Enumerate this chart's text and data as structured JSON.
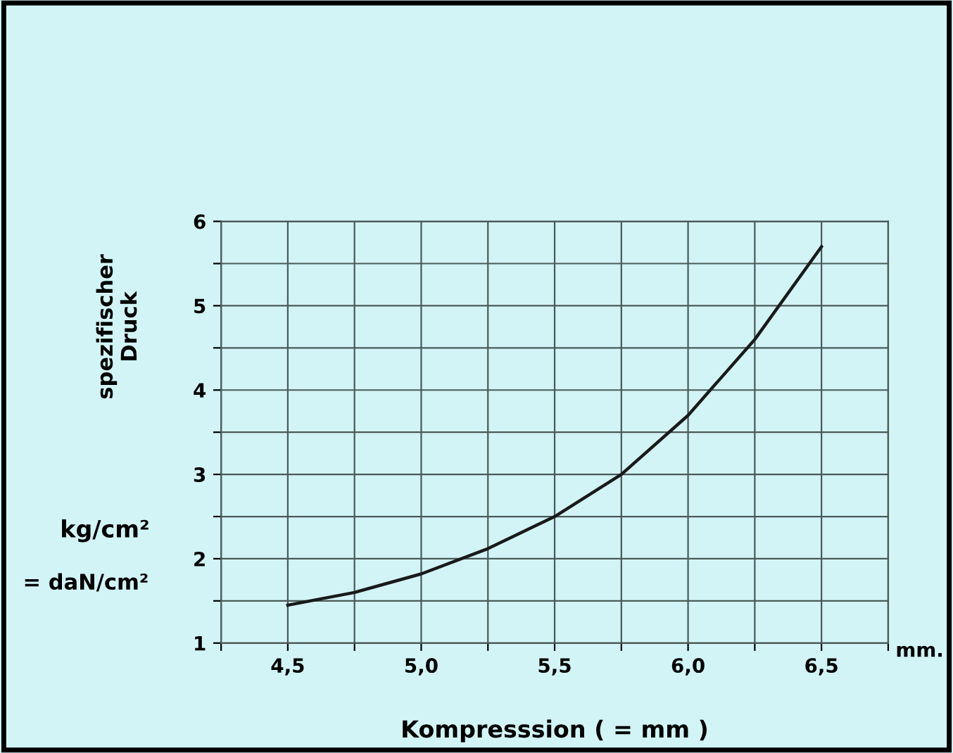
{
  "chart_data": {
    "type": "line",
    "ylabel": "spezifischer\nDruck",
    "xlabel": "Kompresssion ( = mm )",
    "annotations": [
      "kg/cm²",
      "= daN/cm²",
      "mm."
    ],
    "x": [
      4.5,
      4.75,
      5.0,
      5.25,
      5.5,
      5.75,
      6.0,
      6.25,
      6.5
    ],
    "series": [
      {
        "color": "#1a1a1a",
        "values": [
          1.45,
          1.6,
          1.82,
          2.12,
          2.5,
          3.0,
          3.7,
          4.6,
          5.7
        ]
      }
    ],
    "xlim": [
      4.25,
      6.75
    ],
    "xticks": [
      {
        "value": 4.25,
        "label": null
      },
      {
        "value": 4.5,
        "label": "4,5"
      },
      {
        "value": 4.75,
        "label": null
      },
      {
        "value": 5.0,
        "label": "5,0"
      },
      {
        "value": 5.25,
        "label": null
      },
      {
        "value": 5.5,
        "label": "5,5"
      },
      {
        "value": 5.75,
        "label": null
      },
      {
        "value": 6.0,
        "label": "6,0"
      },
      {
        "value": 6.25,
        "label": null
      },
      {
        "value": 6.5,
        "label": "6,5"
      },
      {
        "value": 6.75,
        "label": null
      }
    ],
    "ylim": [
      1,
      6
    ],
    "yticks": [
      1,
      {
        "value": 1.5,
        "label": null
      },
      2,
      {
        "value": 2.5,
        "label": null
      },
      3,
      {
        "value": 3.5,
        "label": null
      },
      4,
      {
        "value": 4.5,
        "label": null
      },
      5,
      {
        "value": 5.5,
        "label": null
      },
      6
    ],
    "grid": true,
    "line_style": "solid",
    "marker": "none"
  }
}
